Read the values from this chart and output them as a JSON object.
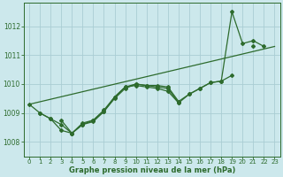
{
  "xlabel": "Graphe pression niveau de la mer (hPa)",
  "background_color": "#cce8ec",
  "grid_color": "#aacdd4",
  "line_color": "#2d6b2d",
  "ylim": [
    1007.5,
    1012.8
  ],
  "xlim": [
    -0.5,
    23.5
  ],
  "yticks": [
    1008,
    1009,
    1010,
    1011,
    1012
  ],
  "xticks": [
    0,
    1,
    2,
    3,
    4,
    5,
    6,
    7,
    8,
    9,
    10,
    11,
    12,
    13,
    14,
    15,
    16,
    17,
    18,
    19,
    20,
    21,
    22,
    23
  ],
  "series_a": [
    1009.3,
    1009.0,
    null,
    null,
    null,
    null,
    null,
    null,
    null,
    null,
    null,
    null,
    null,
    null,
    null,
    null,
    null,
    null,
    null,
    null,
    null,
    null,
    null,
    null
  ],
  "series_b_x": [
    0,
    1,
    2,
    3,
    4,
    5,
    6,
    7,
    8,
    9,
    10,
    11,
    12,
    13,
    14,
    15,
    16,
    17,
    18,
    19,
    20,
    21,
    22
  ],
  "series_b_y": [
    1009.3,
    1009.0,
    1008.8,
    1008.4,
    1008.3,
    1008.65,
    1008.75,
    1009.05,
    1009.5,
    1009.85,
    1010.0,
    1009.95,
    1009.95,
    1009.9,
    1009.4,
    1009.65,
    1009.85,
    1010.05,
    1010.1,
    1012.5,
    1011.4,
    1011.5,
    1011.3
  ],
  "series_c_x": [
    1,
    2,
    3,
    4,
    5,
    6,
    7,
    8,
    9,
    10,
    11,
    12,
    13,
    14,
    15,
    16,
    17,
    18,
    19,
    20,
    21,
    22,
    23
  ],
  "series_c_y": [
    1009.0,
    1008.8,
    1008.6,
    1008.3,
    1008.6,
    1008.75,
    1009.1,
    1009.55,
    1009.9,
    1010.0,
    1009.95,
    1009.9,
    1009.85,
    1009.35,
    1009.65,
    1009.85,
    1010.05,
    1010.1,
    1010.3,
    null,
    1011.3,
    null,
    null
  ],
  "series_d_x": [
    3,
    4,
    5,
    6,
    7,
    8,
    9,
    10,
    11,
    12,
    13,
    14
  ],
  "series_d_y": [
    1008.75,
    1008.3,
    1008.6,
    1008.7,
    1009.05,
    1009.55,
    1009.9,
    1009.95,
    1009.9,
    1009.85,
    1009.75,
    1009.35
  ],
  "trend_x": [
    0,
    23
  ],
  "trend_y": [
    1009.3,
    1011.3
  ]
}
